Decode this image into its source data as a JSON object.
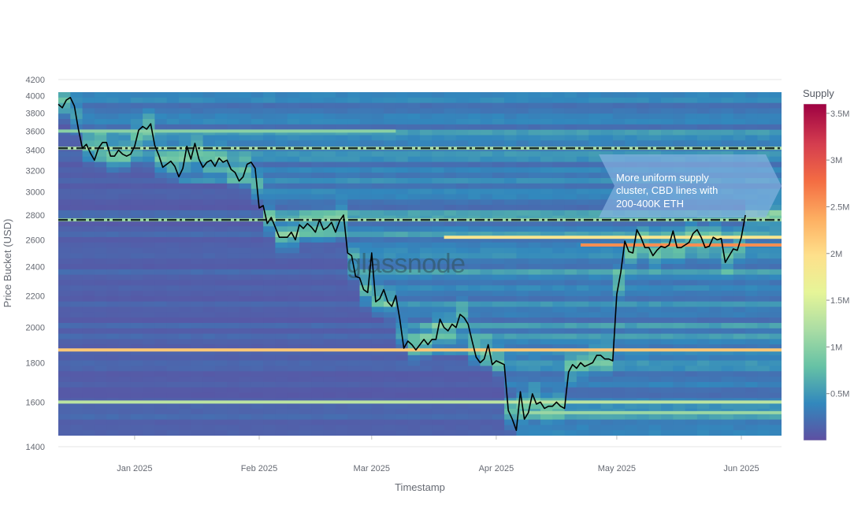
{
  "chart_data": {
    "type": "heatmap",
    "title": "",
    "xlabel": "Timestamp",
    "ylabel": "Price Bucket (USD)",
    "y_scale": "log",
    "ylim": [
      1400,
      4200
    ],
    "yticks": [
      1400,
      1600,
      1800,
      2000,
      2200,
      2400,
      2600,
      2800,
      3000,
      3200,
      3400,
      3600,
      3800,
      4000,
      4200
    ],
    "x_range_days": [
      0,
      180
    ],
    "xticks": [
      {
        "label": "Jan 2025",
        "day": 19
      },
      {
        "label": "Feb 2025",
        "day": 50
      },
      {
        "label": "Mar 2025",
        "day": 78
      },
      {
        "label": "Apr 2025",
        "day": 109
      },
      {
        "label": "May 2025",
        "day": 139
      },
      {
        "label": "Jun 2025",
        "day": 170
      }
    ],
    "colorbar": {
      "title": "Supply",
      "range": [
        0,
        3600000
      ],
      "ticks": [
        {
          "label": "0.5M",
          "value": 500000
        },
        {
          "label": "1M",
          "value": 1000000
        },
        {
          "label": "1.5M",
          "value": 1500000
        },
        {
          "label": "2M",
          "value": 2000000
        },
        {
          "label": "2.5M",
          "value": 2500000
        },
        {
          "label": "3M",
          "value": 3000000
        },
        {
          "label": "3.5M",
          "value": 3500000
        }
      ],
      "colors": [
        "#5e4fa2",
        "#3288bd",
        "#66c2a5",
        "#abdda4",
        "#e6f598",
        "#fee08b",
        "#fdae61",
        "#f46d43",
        "#d53e4f",
        "#9e0142"
      ]
    },
    "horizontal_lines": [
      {
        "name": "upper-cbd-line",
        "y": 3420,
        "style": "dash-dot",
        "color": "#1a2e2a"
      },
      {
        "name": "lower-cbd-line",
        "y": 2760,
        "style": "dash-dot",
        "color": "#1a2e2a"
      }
    ],
    "annotation": {
      "lines": [
        "More uniform supply",
        "cluster, CBD lines with",
        "200-400K ETH"
      ]
    },
    "watermark": "glassnode",
    "price_series": {
      "name": "ETH price",
      "color": "#000000",
      "points": [
        [
          0,
          3900
        ],
        [
          1,
          3860
        ],
        [
          2,
          3950
        ],
        [
          3,
          3980
        ],
        [
          4,
          3880
        ],
        [
          5,
          3620
        ],
        [
          6,
          3420
        ],
        [
          7,
          3460
        ],
        [
          8,
          3370
        ],
        [
          9,
          3300
        ],
        [
          10,
          3420
        ],
        [
          11,
          3480
        ],
        [
          12,
          3480
        ],
        [
          13,
          3340
        ],
        [
          14,
          3340
        ],
        [
          15,
          3400
        ],
        [
          16,
          3360
        ],
        [
          17,
          3340
        ],
        [
          18,
          3360
        ],
        [
          19,
          3440
        ],
        [
          20,
          3610
        ],
        [
          21,
          3650
        ],
        [
          22,
          3620
        ],
        [
          23,
          3680
        ],
        [
          24,
          3450
        ],
        [
          25,
          3350
        ],
        [
          26,
          3230
        ],
        [
          27,
          3260
        ],
        [
          28,
          3290
        ],
        [
          29,
          3240
        ],
        [
          30,
          3140
        ],
        [
          31,
          3220
        ],
        [
          32,
          3440
        ],
        [
          33,
          3310
        ],
        [
          34,
          3470
        ],
        [
          35,
          3310
        ],
        [
          36,
          3230
        ],
        [
          37,
          3280
        ],
        [
          38,
          3300
        ],
        [
          39,
          3240
        ],
        [
          40,
          3320
        ],
        [
          41,
          3280
        ],
        [
          42,
          3300
        ],
        [
          43,
          3210
        ],
        [
          44,
          3180
        ],
        [
          45,
          3100
        ],
        [
          46,
          3140
        ],
        [
          47,
          3260
        ],
        [
          48,
          3280
        ],
        [
          49,
          3220
        ],
        [
          50,
          2860
        ],
        [
          51,
          2880
        ],
        [
          52,
          2730
        ],
        [
          53,
          2780
        ],
        [
          54,
          2700
        ],
        [
          55,
          2620
        ],
        [
          56,
          2620
        ],
        [
          57,
          2620
        ],
        [
          58,
          2660
        ],
        [
          59,
          2600
        ],
        [
          60,
          2720
        ],
        [
          61,
          2690
        ],
        [
          62,
          2730
        ],
        [
          63,
          2700
        ],
        [
          64,
          2660
        ],
        [
          65,
          2760
        ],
        [
          66,
          2680
        ],
        [
          67,
          2700
        ],
        [
          68,
          2740
        ],
        [
          69,
          2660
        ],
        [
          70,
          2750
        ],
        [
          71,
          2800
        ],
        [
          72,
          2500
        ],
        [
          73,
          2480
        ],
        [
          74,
          2330
        ],
        [
          75,
          2320
        ],
        [
          76,
          2240
        ],
        [
          77,
          2220
        ],
        [
          78,
          2500
        ],
        [
          79,
          2160
        ],
        [
          80,
          2180
        ],
        [
          81,
          2240
        ],
        [
          82,
          2160
        ],
        [
          83,
          2130
        ],
        [
          84,
          2200
        ],
        [
          85,
          2050
        ],
        [
          86,
          1880
        ],
        [
          87,
          1920
        ],
        [
          88,
          1900
        ],
        [
          89,
          1870
        ],
        [
          90,
          1900
        ],
        [
          91,
          1930
        ],
        [
          92,
          1900
        ],
        [
          93,
          1930
        ],
        [
          94,
          1930
        ],
        [
          95,
          2050
        ],
        [
          96,
          2000
        ],
        [
          97,
          1980
        ],
        [
          98,
          2020
        ],
        [
          99,
          2000
        ],
        [
          100,
          2080
        ],
        [
          101,
          2060
        ],
        [
          102,
          2020
        ],
        [
          103,
          1920
        ],
        [
          104,
          1830
        ],
        [
          105,
          1800
        ],
        [
          106,
          1820
        ],
        [
          107,
          1900
        ],
        [
          108,
          1790
        ],
        [
          109,
          1810
        ],
        [
          110,
          1800
        ],
        [
          111,
          1790
        ],
        [
          112,
          1560
        ],
        [
          113,
          1520
        ],
        [
          114,
          1470
        ],
        [
          115,
          1650
        ],
        [
          116,
          1520
        ],
        [
          117,
          1550
        ],
        [
          118,
          1640
        ],
        [
          119,
          1590
        ],
        [
          120,
          1600
        ],
        [
          121,
          1570
        ],
        [
          122,
          1580
        ],
        [
          123,
          1580
        ],
        [
          124,
          1600
        ],
        [
          125,
          1580
        ],
        [
          126,
          1570
        ],
        [
          127,
          1750
        ],
        [
          128,
          1790
        ],
        [
          129,
          1770
        ],
        [
          130,
          1800
        ],
        [
          131,
          1780
        ],
        [
          132,
          1790
        ],
        [
          133,
          1800
        ],
        [
          134,
          1840
        ],
        [
          135,
          1840
        ],
        [
          136,
          1820
        ],
        [
          137,
          1820
        ],
        [
          138,
          1810
        ],
        [
          139,
          2210
        ],
        [
          140,
          2360
        ],
        [
          141,
          2590
        ],
        [
          142,
          2510
        ],
        [
          143,
          2500
        ],
        [
          144,
          2680
        ],
        [
          145,
          2620
        ],
        [
          146,
          2540
        ],
        [
          147,
          2540
        ],
        [
          148,
          2480
        ],
        [
          149,
          2520
        ],
        [
          150,
          2550
        ],
        [
          151,
          2540
        ],
        [
          152,
          2560
        ],
        [
          153,
          2670
        ],
        [
          154,
          2540
        ],
        [
          155,
          2540
        ],
        [
          156,
          2560
        ],
        [
          157,
          2580
        ],
        [
          158,
          2650
        ],
        [
          159,
          2680
        ],
        [
          160,
          2620
        ],
        [
          161,
          2540
        ],
        [
          162,
          2550
        ],
        [
          163,
          2620
        ],
        [
          164,
          2600
        ],
        [
          165,
          2610
        ],
        [
          166,
          2430
        ],
        [
          167,
          2480
        ],
        [
          168,
          2530
        ],
        [
          169,
          2520
        ],
        [
          170,
          2620
        ],
        [
          171,
          2800
        ]
      ]
    },
    "supply_bands": [
      {
        "y": 1870,
        "x0": 0,
        "x1": 180,
        "value": 2200000
      },
      {
        "y": 1600,
        "x0": 0,
        "x1": 180,
        "value": 1300000
      },
      {
        "y": 3420,
        "x0": 0,
        "x1": 180,
        "value": 1200000
      },
      {
        "y": 2760,
        "x0": 0,
        "x1": 180,
        "value": 1100000
      },
      {
        "y": 2560,
        "x0": 130,
        "x1": 180,
        "value": 2600000
      },
      {
        "y": 2620,
        "x0": 96,
        "x1": 180,
        "value": 1900000
      },
      {
        "y": 1550,
        "x0": 115,
        "x1": 180,
        "value": 1100000
      },
      {
        "y": 3600,
        "x0": 0,
        "x1": 84,
        "value": 1000000
      }
    ]
  }
}
